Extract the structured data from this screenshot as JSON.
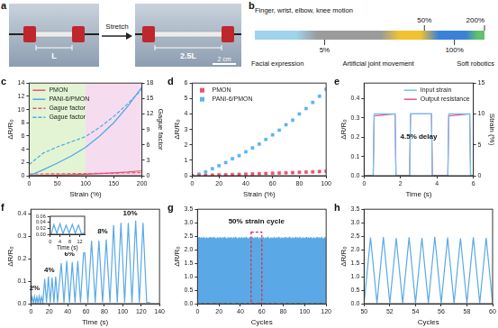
{
  "panel_a": {
    "label": "a",
    "arrow_text": "Stretch",
    "before_label": "L",
    "after_label": "2.5L",
    "scale_bar": "2 cm"
  },
  "panel_b": {
    "label": "b",
    "markers": [
      {
        "value": 5,
        "label": "5%"
      },
      {
        "value": 50,
        "label": "50%"
      },
      {
        "value": 100,
        "label": "100%"
      },
      {
        "value": 200,
        "label": "200%"
      }
    ],
    "texts": [
      "Finger, wrist, elbow, knee motion",
      "Facial expression",
      "Artificial joint movement",
      "Soft robotics"
    ]
  },
  "chart_data": [
    {
      "panel": "c",
      "type": "line",
      "xlabel": "Strain (%)",
      "ylabel": "ΔR/R₀",
      "y2label": "Gague factor",
      "x": [
        0,
        25,
        50,
        75,
        100,
        125,
        150,
        175,
        200
      ],
      "series": [
        {
          "name": "PMON",
          "color": "#e5566b",
          "values": [
            0,
            0.04,
            0.09,
            0.15,
            0.22,
            0.31,
            0.42,
            0.56,
            0.75
          ]
        },
        {
          "name": "PANI-6/PMON",
          "color": "#4aa8e8",
          "values": [
            0,
            0.9,
            1.9,
            3.0,
            4.3,
            6.0,
            8.0,
            10.5,
            13.4
          ]
        },
        {
          "name": "Gague factor",
          "color": "#e5566b",
          "line_style": "dashed",
          "axis": "y2",
          "values": [
            0.35,
            0.35,
            0.38,
            0.4,
            0.42,
            0.46,
            0.5,
            0.55,
            0.6
          ]
        },
        {
          "name": "Gague factor",
          "color": "#4aa8e8",
          "line_style": "dashed",
          "axis": "y2",
          "values": [
            2.2,
            4.4,
            5.6,
            6.6,
            7.6,
            9.4,
            11.5,
            14.0,
            16.8
          ]
        }
      ],
      "regions": [
        {
          "from": 0,
          "to": 100,
          "color": "#e3f4d4"
        },
        {
          "from": 100,
          "to": 200,
          "color": "#f6dcef"
        }
      ],
      "xlim": [
        0,
        200
      ],
      "xticks": [
        0,
        50,
        100,
        150,
        200
      ],
      "ylim": [
        0,
        14
      ],
      "yticks": [
        0,
        2,
        4,
        6,
        8,
        10,
        12,
        14
      ],
      "y2lim": [
        0,
        18
      ],
      "y2ticks": [
        0,
        3,
        6,
        9,
        12,
        15,
        18
      ],
      "legend": "top-left",
      "grid": false
    },
    {
      "panel": "d",
      "type": "scatter",
      "xlabel": "Strain (%)",
      "ylabel": "ΔR/R₀",
      "x": [
        0,
        5,
        10,
        15,
        20,
        25,
        30,
        35,
        40,
        45,
        50,
        55,
        60,
        65,
        70,
        75,
        80,
        85,
        90,
        95,
        100
      ],
      "series": [
        {
          "name": "PMON",
          "color": "#f0506e",
          "marker": "square",
          "values": [
            0,
            0.01,
            0.02,
            0.035,
            0.05,
            0.06,
            0.075,
            0.09,
            0.1,
            0.115,
            0.13,
            0.145,
            0.16,
            0.175,
            0.19,
            0.2,
            0.22,
            0.235,
            0.25,
            0.27,
            0.29
          ]
        },
        {
          "name": "PANI-6/PMON",
          "color": "#5cb3f0",
          "marker": "square",
          "values": [
            0,
            0.1,
            0.25,
            0.45,
            0.65,
            0.85,
            1.1,
            1.3,
            1.55,
            1.8,
            2.05,
            2.35,
            2.65,
            2.95,
            3.3,
            3.6,
            4.0,
            4.35,
            4.75,
            5.15,
            5.6
          ]
        }
      ],
      "xlim": [
        0,
        100
      ],
      "xticks": [
        0,
        20,
        40,
        60,
        80,
        100
      ],
      "ylim": [
        0,
        6
      ],
      "yticks": [
        0,
        1,
        2,
        3,
        4,
        5,
        6
      ],
      "legend": "top-left",
      "grid": false
    },
    {
      "panel": "e",
      "type": "line",
      "xlabel": "Time (s)",
      "ylabel": "ΔR/R₀",
      "y2label": "Strain (%)",
      "x": [
        0,
        0.5,
        0.55,
        1.7,
        1.75,
        2.5,
        2.55,
        3.7,
        3.75,
        4.6,
        4.65,
        5.8,
        5.85,
        6
      ],
      "series": [
        {
          "name": "Input strain",
          "color": "#6cc3ef",
          "axis": "y2",
          "values": [
            0,
            0,
            10,
            10,
            0,
            0,
            10,
            10,
            0,
            0,
            10,
            10,
            0,
            0
          ]
        },
        {
          "name": "Output resistance",
          "color": "#e8508f",
          "values": [
            0,
            0,
            0.31,
            0.32,
            0,
            0,
            0.32,
            0.32,
            0,
            0,
            0.31,
            0.32,
            0,
            0
          ]
        }
      ],
      "annotations": [
        {
          "text": "4.5% delay",
          "x": 3.0,
          "y": 0.2
        }
      ],
      "xlim": [
        0,
        6
      ],
      "xticks": [
        0,
        2,
        4,
        6
      ],
      "ylim": [
        0,
        0.48
      ],
      "yticks": [
        {
          "value": 0,
          "label": "0.0"
        },
        0.1,
        0.2,
        0.3,
        0.4
      ],
      "y2lim": [
        0,
        15
      ],
      "y2ticks": [
        0,
        5,
        10,
        15
      ],
      "legend": "top-right",
      "grid": false
    },
    {
      "panel": "f",
      "type": "line",
      "xlabel": "Time (s)",
      "ylabel": "ΔR/R₀",
      "color": "#5aa9e6",
      "x": [
        0,
        1.5,
        2.7,
        4,
        5.2,
        6.5,
        7.7,
        9,
        10.2,
        11.5,
        13,
        15,
        17,
        19,
        21,
        23,
        25,
        27,
        29,
        33,
        36,
        39,
        42,
        45,
        48,
        51,
        54,
        58,
        62,
        66,
        70,
        74,
        78,
        82,
        86,
        90,
        94,
        98,
        102,
        106,
        110,
        114,
        118,
        122,
        126,
        130
      ],
      "values": [
        0,
        0.03,
        0.002,
        0.032,
        0.002,
        0.03,
        0.003,
        0.033,
        0.002,
        0.031,
        0.002,
        0.11,
        0.005,
        0.12,
        0.005,
        0.115,
        0.005,
        0.12,
        0.005,
        0.18,
        0.005,
        0.19,
        0.005,
        0.185,
        0.005,
        0.19,
        0.005,
        0.27,
        0.005,
        0.28,
        0.005,
        0.28,
        0.005,
        0.285,
        0.005,
        0.35,
        0.005,
        0.36,
        0.005,
        0.36,
        0.005,
        0.37,
        0.005,
        0.36,
        0.005,
        0.005
      ],
      "annotations": [
        {
          "text": "2%",
          "x": 4,
          "y": 0.07
        },
        {
          "text": "4%",
          "x": 20,
          "y": 0.15
        },
        {
          "text": "6%",
          "x": 42,
          "y": 0.22
        },
        {
          "text": "8%",
          "x": 78,
          "y": 0.32
        },
        {
          "text": "10%",
          "x": 108,
          "y": 0.4
        }
      ],
      "xlim": [
        0,
        140
      ],
      "xticks": [
        0,
        20,
        40,
        60,
        80,
        100,
        120,
        140
      ],
      "ylim": [
        0,
        0.42
      ],
      "yticks": [
        {
          "value": 0,
          "label": "0.0"
        },
        0.1,
        0.2,
        0.3,
        0.4
      ],
      "grid": false,
      "inset": {
        "type": "line",
        "xlabel": "Time (s)",
        "color": "#5aa9e6",
        "x": [
          0,
          0.5,
          1.5,
          2.7,
          4,
          5.2,
          6.5,
          7.7,
          9,
          10.2,
          11.5,
          12.7,
          14
        ],
        "values": [
          0,
          0.002,
          0.032,
          0.003,
          0.035,
          0.002,
          0.03,
          0.004,
          0.033,
          0.003,
          0.031,
          0.002,
          0.003
        ],
        "xlim": [
          0,
          14
        ],
        "xticks": [
          0,
          4,
          8,
          12
        ],
        "ylim": [
          0,
          0.06
        ],
        "yticks": [
          {
            "value": 0,
            "label": "0.00"
          },
          0.02,
          0.04,
          0.06
        ],
        "grid": false
      }
    },
    {
      "panel": "g",
      "type": "line",
      "xlabel": "Cycles",
      "ylabel": "ΔR/R₀",
      "color": "#5aa9e6",
      "x": [
        0,
        0.5,
        1,
        1.5,
        2,
        2.5,
        3,
        3.5,
        4,
        4.5,
        5,
        5.5,
        6,
        6.5,
        7,
        7.5,
        8,
        8.5,
        9,
        9.5,
        10,
        10.5,
        11,
        11.5,
        12,
        12.5,
        13,
        13.5,
        14,
        14.5,
        15,
        15.5,
        16,
        16.5,
        17,
        17.5,
        18,
        18.5,
        19,
        19.5,
        20,
        20.5,
        21,
        21.5,
        22,
        22.5,
        23,
        23.5,
        24,
        24.5,
        25,
        25.5,
        26,
        26.5,
        27,
        27.5,
        28,
        28.5,
        29,
        29.5,
        30,
        30.5,
        31,
        31.5,
        32,
        32.5,
        33,
        33.5,
        34,
        34.5,
        35,
        35.5,
        36,
        36.5,
        37,
        37.5,
        38,
        38.5,
        39,
        39.5,
        40,
        40.5,
        41,
        41.5,
        42,
        42.5,
        43,
        43.5,
        44,
        44.5,
        45,
        45.5,
        46,
        46.5,
        47,
        47.5,
        48,
        48.5,
        49,
        49.5,
        50,
        50.5,
        51,
        51.5,
        52,
        52.5,
        53,
        53.5,
        54,
        54.5,
        55,
        55.5,
        56,
        56.5,
        57,
        57.5,
        58,
        58.5,
        59,
        59.5,
        60,
        60.5,
        61,
        61.5,
        62,
        62.5,
        63,
        63.5,
        64,
        64.5,
        65,
        65.5,
        66,
        66.5,
        67,
        67.5,
        68,
        68.5,
        69,
        69.5,
        70,
        70.5,
        71,
        71.5,
        72,
        72.5,
        73,
        73.5,
        74,
        74.5,
        75,
        75.5,
        76,
        76.5,
        77,
        77.5,
        78,
        78.5,
        79,
        79.5,
        80,
        80.5,
        81,
        81.5,
        82,
        82.5,
        83,
        83.5,
        84,
        84.5,
        85,
        85.5,
        86,
        86.5,
        87,
        87.5,
        88,
        88.5,
        89,
        89.5,
        90,
        90.5,
        91,
        91.5,
        92,
        92.5,
        93,
        93.5,
        94,
        94.5,
        95,
        95.5,
        96,
        96.5,
        97,
        97.5,
        98,
        98.5,
        99,
        99.5,
        100,
        100.5,
        101,
        101.5,
        102,
        102.5,
        103,
        103.5,
        104,
        104.5,
        105,
        105.5,
        106,
        106.5,
        107,
        107.5,
        108,
        108.5,
        109,
        109.5,
        110,
        110.5,
        111,
        111.5,
        112,
        112.5,
        113,
        113.5,
        114,
        114.5,
        115,
        115.5,
        116,
        116.5,
        117,
        117.5,
        118,
        118.5,
        119,
        119.5,
        120
      ],
      "values": [
        0.02,
        2.45,
        0.02,
        2.47,
        0.02,
        2.43,
        0.02,
        2.46,
        0.02,
        2.44,
        0.02,
        2.48,
        0.02,
        2.45,
        0.02,
        2.42,
        0.02,
        2.46,
        0.02,
        2.44,
        0.02,
        2.45,
        0.02,
        2.47,
        0.02,
        2.43,
        0.02,
        2.46,
        0.02,
        2.44,
        0.02,
        2.48,
        0.02,
        2.45,
        0.02,
        2.42,
        0.02,
        2.46,
        0.02,
        2.44,
        0.02,
        2.45,
        0.02,
        2.47,
        0.02,
        2.43,
        0.02,
        2.46,
        0.02,
        2.44,
        0.02,
        2.48,
        0.02,
        2.45,
        0.02,
        2.42,
        0.02,
        2.46,
        0.02,
        2.44,
        0.02,
        2.45,
        0.02,
        2.47,
        0.02,
        2.43,
        0.02,
        2.46,
        0.02,
        2.44,
        0.02,
        2.48,
        0.02,
        2.45,
        0.02,
        2.42,
        0.02,
        2.46,
        0.02,
        2.44,
        0.02,
        2.45,
        0.02,
        2.47,
        0.02,
        2.43,
        0.02,
        2.46,
        0.02,
        2.44,
        0.02,
        2.48,
        0.02,
        2.45,
        0.02,
        2.42,
        0.02,
        2.46,
        0.02,
        2.44,
        0.02,
        2.45,
        0.02,
        2.47,
        0.02,
        2.43,
        0.02,
        2.46,
        0.02,
        2.44,
        0.02,
        2.48,
        0.02,
        2.45,
        0.02,
        2.42,
        0.02,
        2.46,
        0.02,
        2.44,
        0.02,
        2.45,
        0.02,
        2.47,
        0.02,
        2.43,
        0.02,
        2.46,
        0.02,
        2.44,
        0.02,
        2.48,
        0.02,
        2.45,
        0.02,
        2.42,
        0.02,
        2.46,
        0.02,
        2.44,
        0.02,
        2.45,
        0.02,
        2.47,
        0.02,
        2.43,
        0.02,
        2.46,
        0.02,
        2.44,
        0.02,
        2.48,
        0.02,
        2.45,
        0.02,
        2.42,
        0.02,
        2.46,
        0.02,
        2.44,
        0.02,
        2.45,
        0.02,
        2.47,
        0.02,
        2.43,
        0.02,
        2.46,
        0.02,
        2.44,
        0.02,
        2.48,
        0.02,
        2.45,
        0.02,
        2.42,
        0.02,
        2.46,
        0.02,
        2.44,
        0.02,
        2.45,
        0.02,
        2.47,
        0.02,
        2.43,
        0.02,
        2.46,
        0.02,
        2.44,
        0.02,
        2.48,
        0.02,
        2.45,
        0.02,
        2.42,
        0.02,
        2.46,
        0.02,
        2.44,
        0.02,
        2.45,
        0.02,
        2.47,
        0.02,
        2.43,
        0.02,
        2.46,
        0.02,
        2.44,
        0.02,
        2.48,
        0.02,
        2.45,
        0.02,
        2.42,
        0.02,
        2.46,
        0.02,
        2.44,
        0.02,
        2.45,
        0.02,
        2.47,
        0.02,
        2.43,
        0.02,
        2.46,
        0.02,
        2.44,
        0.02,
        2.48,
        0.02,
        2.45,
        0.02,
        2.42,
        0.02,
        2.46,
        0.02,
        2.44,
        0.02
      ],
      "highlight": {
        "x": [
          50,
          60
        ],
        "y": [
          0,
          2.65
        ]
      },
      "annotations": [
        {
          "text": "50% strain cycle",
          "x": 55,
          "y": 3.05
        }
      ],
      "xlim": [
        0,
        120
      ],
      "xticks": [
        0,
        20,
        40,
        60,
        80,
        100,
        120
      ],
      "ylim": [
        0,
        3.5
      ],
      "yticks": [
        {
          "value": 0,
          "label": "0.0"
        },
        0.5,
        {
          "value": 1,
          "label": "1.0"
        },
        1.5,
        {
          "value": 2,
          "label": "2.0"
        },
        2.5,
        {
          "value": 3,
          "label": "3.0"
        },
        3.5
      ],
      "grid": false
    },
    {
      "panel": "h",
      "type": "line",
      "xlabel": "Cycles",
      "ylabel": "ΔR/R₀",
      "color": "#5aa9e6",
      "x": [
        50,
        50.5,
        51,
        51.5,
        52,
        52.5,
        53,
        53.5,
        54,
        54.5,
        55,
        55.5,
        56,
        56.5,
        57,
        57.5,
        58,
        58.5,
        59,
        59.5,
        60
      ],
      "values": [
        0.02,
        2.45,
        0.02,
        2.47,
        0.02,
        2.43,
        0.02,
        2.46,
        0.02,
        2.44,
        0.02,
        2.48,
        0.02,
        2.45,
        0.02,
        2.42,
        0.02,
        2.46,
        0.02,
        2.44,
        0.02
      ],
      "xlim": [
        50,
        60
      ],
      "xticks": [
        50,
        52,
        54,
        56,
        58,
        60
      ],
      "ylim": [
        0,
        3.5
      ],
      "yticks": [
        {
          "value": 0,
          "label": "0.0"
        },
        0.5,
        {
          "value": 1,
          "label": "1.0"
        },
        1.5,
        {
          "value": 2,
          "label": "2.0"
        },
        2.5,
        {
          "value": 3,
          "label": "3.0"
        },
        3.5
      ],
      "grid": false
    }
  ]
}
